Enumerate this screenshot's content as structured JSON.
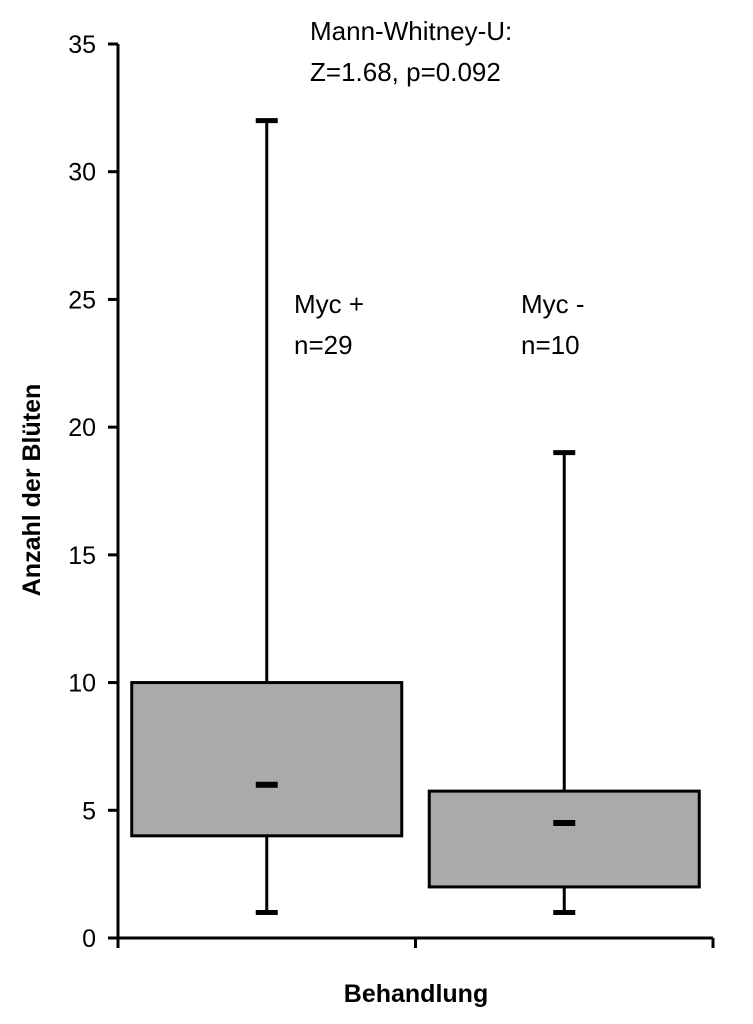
{
  "chart_data": {
    "type": "box",
    "title": "",
    "xlabel": "Behandlung",
    "ylabel": "Anzahl der Blüten",
    "ylim": [
      0,
      35
    ],
    "yticks": [
      0,
      5,
      10,
      15,
      20,
      25,
      30,
      35
    ],
    "grid": false,
    "categories": [
      "Myc +",
      "Myc -"
    ],
    "boxes": [
      {
        "label": "Myc +",
        "n_label": "n=29",
        "whisker_low": 1,
        "q1": 4,
        "median": 6,
        "q3": 10,
        "whisker_high": 32
      },
      {
        "label": "Myc -",
        "n_label": "n=10",
        "whisker_low": 1,
        "q1": 2,
        "median": 4.5,
        "q3": 5.75,
        "whisker_high": 19
      }
    ],
    "annotation": [
      "Mann-Whitney-U:",
      "Z=1.68, p=0.092"
    ],
    "box_color": "#aaaaaa"
  }
}
